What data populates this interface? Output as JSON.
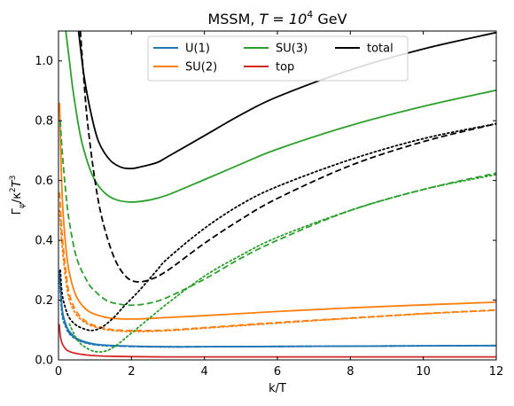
{
  "chart_data": {
    "type": "line",
    "title_prefix": "MSSM, ",
    "title_math": "T = 10",
    "title_exp": "4",
    "title_suffix": " GeV",
    "xlabel": "k/T",
    "ylabel_main": "Γ",
    "ylabel_sub": "ψ",
    "ylabel_rest": "/κ",
    "ylabel_sup1": "2",
    "ylabel_T": "T",
    "ylabel_sup2": "3",
    "xlim": [
      0,
      12
    ],
    "ylim": [
      0,
      1.1
    ],
    "xticks": [
      0,
      2,
      4,
      6,
      8,
      10,
      12
    ],
    "yticks": [
      0.0,
      0.2,
      0.4,
      0.6,
      0.8,
      1.0
    ],
    "grid": false,
    "legend_position": "top-center",
    "legend": [
      {
        "name": "U(1)",
        "color": "#1f77b4"
      },
      {
        "name": "SU(2)",
        "color": "#ff7f0e"
      },
      {
        "name": "SU(3)",
        "color": "#2ca02c"
      },
      {
        "name": "top",
        "color": "#d62728"
      },
      {
        "name": "total",
        "color": "#000000"
      }
    ],
    "series": [
      {
        "group": "U(1)",
        "style": "solid",
        "color": "#1f77b4",
        "x": [
          0.03,
          0.1,
          0.2,
          0.3,
          0.5,
          0.8,
          1.2,
          2,
          3,
          4,
          6,
          8,
          10,
          12
        ],
        "y": [
          0.3,
          0.17,
          0.12,
          0.095,
          0.072,
          0.058,
          0.05,
          0.046,
          0.044,
          0.044,
          0.045,
          0.046,
          0.047,
          0.048
        ]
      },
      {
        "group": "U(1)",
        "style": "dashed",
        "color": "#1f77b4",
        "x": [
          0.03,
          0.1,
          0.2,
          0.3,
          0.5,
          0.8,
          1.2,
          2,
          3,
          4,
          6,
          8,
          10,
          12
        ],
        "y": [
          0.28,
          0.16,
          0.115,
          0.09,
          0.07,
          0.056,
          0.049,
          0.045,
          0.044,
          0.044,
          0.045,
          0.046,
          0.047,
          0.048
        ]
      },
      {
        "group": "U(1)",
        "style": "dotted",
        "color": "#1f77b4",
        "x": [
          0.03,
          0.1,
          0.2,
          0.3,
          0.5,
          0.8,
          1.2,
          2,
          3,
          4,
          6,
          8,
          10,
          12
        ],
        "y": [
          0.26,
          0.15,
          0.11,
          0.087,
          0.068,
          0.055,
          0.048,
          0.045,
          0.043,
          0.044,
          0.045,
          0.046,
          0.047,
          0.048
        ]
      },
      {
        "group": "SU(2)",
        "style": "solid",
        "color": "#ff7f0e",
        "x": [
          0.03,
          0.1,
          0.2,
          0.3,
          0.5,
          0.8,
          1.2,
          1.6,
          2.2,
          3,
          4,
          6,
          8,
          10,
          12
        ],
        "y": [
          0.86,
          0.55,
          0.38,
          0.29,
          0.21,
          0.165,
          0.145,
          0.138,
          0.137,
          0.142,
          0.148,
          0.162,
          0.174,
          0.184,
          0.193
        ]
      },
      {
        "group": "SU(2)",
        "style": "dashed",
        "color": "#ff7f0e",
        "x": [
          0.03,
          0.1,
          0.2,
          0.3,
          0.5,
          0.8,
          1.2,
          1.6,
          2.2,
          3,
          4,
          6,
          8,
          10,
          12
        ],
        "y": [
          0.56,
          0.42,
          0.3,
          0.22,
          0.16,
          0.125,
          0.108,
          0.1,
          0.098,
          0.1,
          0.108,
          0.125,
          0.14,
          0.155,
          0.167
        ]
      },
      {
        "group": "SU(2)",
        "style": "dotted",
        "color": "#ff7f0e",
        "x": [
          0.03,
          0.1,
          0.2,
          0.3,
          0.5,
          0.8,
          1.2,
          1.6,
          2.2,
          3,
          4,
          6,
          8,
          10,
          12
        ],
        "y": [
          0.5,
          0.38,
          0.27,
          0.2,
          0.15,
          0.12,
          0.104,
          0.097,
          0.095,
          0.098,
          0.106,
          0.123,
          0.139,
          0.154,
          0.166
        ]
      },
      {
        "group": "SU(3)",
        "style": "solid",
        "color": "#2ca02c",
        "x": [
          0.2,
          0.3,
          0.4,
          0.6,
          0.8,
          1.0,
          1.3,
          1.6,
          2.0,
          2.5,
          3,
          4,
          5,
          6,
          8,
          10,
          12
        ],
        "y": [
          1.1,
          1.0,
          0.9,
          0.75,
          0.66,
          0.6,
          0.555,
          0.535,
          0.528,
          0.535,
          0.552,
          0.603,
          0.655,
          0.705,
          0.784,
          0.848,
          0.902
        ]
      },
      {
        "group": "SU(3)",
        "style": "dashed",
        "color": "#2ca02c",
        "x": [
          0.05,
          0.1,
          0.2,
          0.3,
          0.5,
          0.8,
          1.0,
          1.3,
          1.6,
          2.0,
          2.5,
          3,
          4,
          5,
          6,
          8,
          10,
          12
        ],
        "y": [
          0.8,
          0.7,
          0.56,
          0.46,
          0.34,
          0.26,
          0.23,
          0.2,
          0.188,
          0.183,
          0.19,
          0.21,
          0.27,
          0.34,
          0.4,
          0.5,
          0.57,
          0.625
        ]
      },
      {
        "group": "SU(3)",
        "style": "dotted",
        "color": "#2ca02c",
        "x": [
          0.3,
          0.5,
          0.7,
          1.0,
          1.3,
          1.6,
          2.0,
          2.5,
          3,
          4,
          5,
          6,
          8,
          10,
          12
        ],
        "y": [
          0.12,
          0.07,
          0.045,
          0.028,
          0.03,
          0.05,
          0.09,
          0.14,
          0.19,
          0.28,
          0.35,
          0.41,
          0.5,
          0.57,
          0.62
        ]
      },
      {
        "group": "top",
        "style": "solid",
        "color": "#d62728",
        "x": [
          0.02,
          0.05,
          0.1,
          0.2,
          0.3,
          0.5,
          0.8,
          1.2,
          2,
          3,
          4,
          6,
          8,
          10,
          12
        ],
        "y": [
          0.12,
          0.08,
          0.055,
          0.036,
          0.028,
          0.021,
          0.016,
          0.013,
          0.011,
          0.01,
          0.01,
          0.01,
          0.01,
          0.01,
          0.01
        ]
      },
      {
        "group": "total",
        "style": "solid",
        "color": "#000000",
        "x": [
          0.55,
          0.7,
          0.9,
          1.1,
          1.4,
          1.7,
          2.0,
          2.3,
          2.7,
          3,
          4,
          5,
          6,
          8,
          10,
          12
        ],
        "y": [
          1.1,
          0.95,
          0.82,
          0.73,
          0.67,
          0.645,
          0.64,
          0.647,
          0.66,
          0.68,
          0.75,
          0.82,
          0.88,
          0.97,
          1.04,
          1.095
        ]
      },
      {
        "group": "total",
        "style": "dashed",
        "color": "#000000",
        "x": [
          0.6,
          0.7,
          0.8,
          1.0,
          1.2,
          1.5,
          1.8,
          2.1,
          2.5,
          3,
          4,
          5,
          6,
          8,
          10,
          12
        ],
        "y": [
          1.1,
          0.93,
          0.79,
          0.6,
          0.47,
          0.35,
          0.285,
          0.262,
          0.268,
          0.3,
          0.39,
          0.47,
          0.54,
          0.65,
          0.73,
          0.79
        ]
      },
      {
        "group": "total",
        "style": "dotted",
        "color": "#000000",
        "x": [
          0.05,
          0.1,
          0.2,
          0.3,
          0.5,
          0.8,
          1.0,
          1.2,
          1.5,
          1.8,
          2.2,
          2.7,
          3,
          4,
          5,
          6,
          8,
          10,
          12
        ],
        "y": [
          0.3,
          0.22,
          0.17,
          0.14,
          0.115,
          0.1,
          0.1,
          0.11,
          0.14,
          0.18,
          0.23,
          0.3,
          0.34,
          0.44,
          0.52,
          0.58,
          0.67,
          0.74,
          0.79
        ]
      }
    ]
  }
}
